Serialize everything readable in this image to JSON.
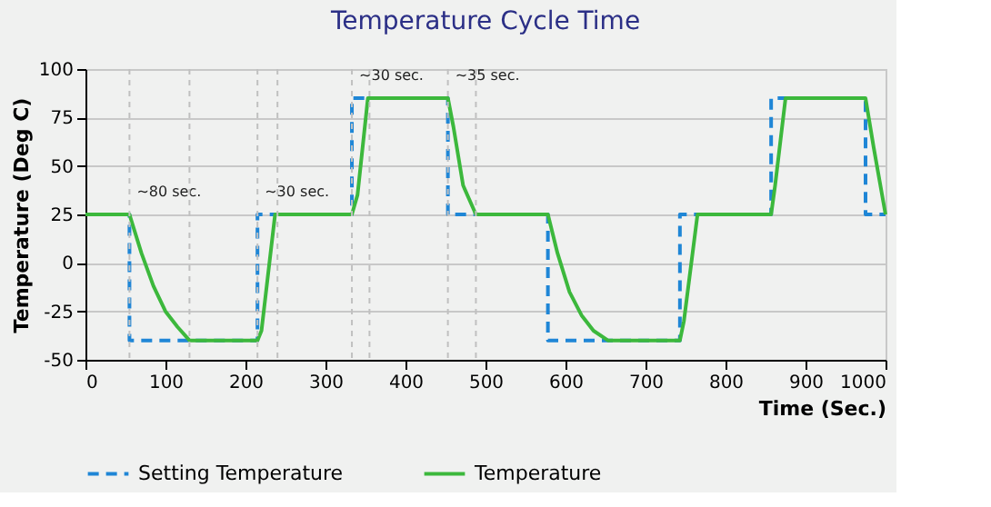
{
  "chart_data": {
    "type": "line",
    "title": "Temperature Cycle Time",
    "xlabel": "Time (Sec.)",
    "ylabel": "Temperature (Deg C)",
    "xlim": [
      0,
      1000
    ],
    "xticks": [
      0,
      100,
      200,
      300,
      400,
      500,
      600,
      700,
      800,
      900,
      1000
    ],
    "ylim": [
      -50,
      100
    ],
    "yticks": [
      -50,
      -25,
      0,
      25,
      50,
      75,
      100
    ],
    "grid": "y",
    "legend": "bottom",
    "series": [
      {
        "name": "Setting Temperature",
        "color": "#1f86d6",
        "line_style": "dashed",
        "x": [
          0,
          55,
          55,
          215,
          215,
          333,
          333,
          453,
          453,
          578,
          578,
          743,
          743,
          857,
          857,
          975,
          975,
          1000
        ],
        "values": [
          25,
          25,
          -40,
          -40,
          25,
          25,
          85,
          85,
          25,
          25,
          -40,
          -40,
          25,
          25,
          85,
          85,
          25,
          25
        ]
      },
      {
        "name": "Temperature",
        "color": "#3cb83c",
        "line_style": "solid",
        "x": [
          0,
          55,
          70,
          85,
          100,
          115,
          130,
          215,
          220,
          237,
          333,
          340,
          353,
          453,
          460,
          472,
          488,
          578,
          590,
          605,
          620,
          635,
          653,
          743,
          748,
          765,
          857,
          862,
          875,
          975,
          985,
          1000
        ],
        "values": [
          25,
          25,
          5,
          -12,
          -25,
          -33,
          -40,
          -40,
          -35,
          25,
          25,
          35,
          85,
          85,
          70,
          40,
          25,
          25,
          5,
          -15,
          -27,
          -35,
          -40,
          -40,
          -30,
          25,
          25,
          40,
          85,
          85,
          60,
          25
        ]
      }
    ],
    "ref_lines": [
      {
        "axis": "x",
        "value": 55
      },
      {
        "axis": "x",
        "value": 130
      },
      {
        "axis": "x",
        "value": 215
      },
      {
        "axis": "x",
        "value": 240
      },
      {
        "axis": "x",
        "value": 333
      },
      {
        "axis": "x",
        "value": 355
      },
      {
        "axis": "x",
        "value": 453
      },
      {
        "axis": "x",
        "value": 488
      }
    ],
    "annotations": [
      "~80 sec.",
      "~30 sec.",
      "~30 sec.",
      "~35 sec."
    ]
  }
}
